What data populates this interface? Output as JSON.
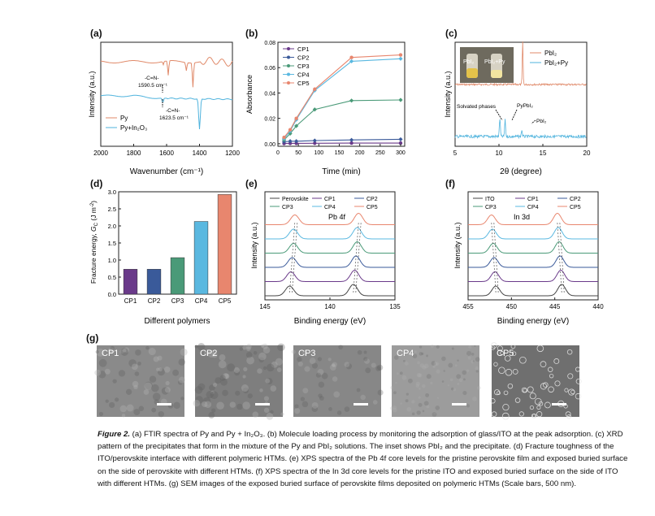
{
  "caption": {
    "figure_label": "Figure 2.",
    "text": "(a) FTIR spectra of Py and Py + In₂O₃. (b) Molecule loading process by monitoring the adsorption of glass/ITO at the peak adsorption. (c) XRD pattern of the precipitates that form in the mixture of the Py and PbI₂ solutions. The inset shows PbI₂ and the precipitate. (d) Fracture toughness of the ITO/perovskite interface with different polymeric HTMs. (e) XPS spectra of the Pb 4f core levels for the pristine perovskite film and exposed buried surface on the side of perovskite with different HTMs. (f) XPS spectra of the In 3d core levels for the pristine ITO and exposed buried surface on the side of ITO with different HTMs. (g) SEM images of the exposed buried surface of perovskite films deposited on polymeric HTMs (Scale bars, 500 nm)."
  },
  "colors": {
    "py": "#e08a6a",
    "py_in2o3": "#4fb3dd",
    "cp1": "#6a3a8a",
    "cp2": "#3a5a9a",
    "cp3": "#4a9a78",
    "cp4": "#5ab8e0",
    "cp5": "#e8866e",
    "perovskite": "#444444",
    "ito": "#444444"
  },
  "panels": {
    "a": {
      "label": "(a)",
      "ylabel": "Intensity (a.u.)",
      "xlabel": "Wavenumber (cm⁻¹)",
      "legend": [
        "Py",
        "Py+In₂O₃"
      ],
      "annot1": [
        "-C=N-",
        "1590.5 cm⁻¹"
      ],
      "annot2": [
        "-C=N-",
        "1623.5 cm⁻¹"
      ]
    },
    "b": {
      "label": "(b)",
      "legend": [
        "CP1",
        "CP2",
        "CP3",
        "CP4",
        "CP5"
      ]
    },
    "c": {
      "label": "(c)",
      "xlabel": "2θ (degree)",
      "ylabel": "Intensity (a.u.)",
      "legend": [
        "PbI₂",
        "PbI₂+Py"
      ],
      "inset_labels": [
        "PbI₂",
        "PbI₂+Py"
      ],
      "annots": [
        "Solvated phases",
        "PyPbI₂",
        "PbI₂"
      ]
    },
    "d": {
      "label": "(d)"
    },
    "e": {
      "label": "(e)",
      "ylabel": "Intensity (a.u.)",
      "xlabel": "Binding energy (eV)",
      "legend": [
        "Perovskite",
        "CP1",
        "CP2",
        "CP3",
        "CP4",
        "CP5"
      ],
      "core": "Pb 4f"
    },
    "f": {
      "label": "(f)",
      "ylabel": "Intensity (a.u.)",
      "xlabel": "Binding energy (eV)",
      "legend": [
        "ITO",
        "CP1",
        "CP2",
        "CP3",
        "CP4",
        "CP5"
      ],
      "core": "In 3d"
    },
    "g": {
      "label": "(g)",
      "images": [
        "CP1",
        "CP2",
        "CP3",
        "CP4",
        "CP5"
      ]
    }
  },
  "chart_data": [
    {
      "type": "line",
      "panel": "a",
      "title": "",
      "xlabel": "Wavenumber (cm⁻¹)",
      "ylabel": "Intensity (a.u.)",
      "xlim": [
        2000,
        1200
      ],
      "xticks": [
        2000,
        1800,
        1600,
        1400,
        1200
      ],
      "series": [
        {
          "name": "Py",
          "peaks": [
            1590.5,
            1480,
            1440
          ]
        },
        {
          "name": "Py+In₂O₃",
          "peaks": [
            1623.5,
            1400
          ]
        }
      ]
    },
    {
      "type": "line",
      "panel": "b",
      "title": "",
      "xlabel": "Time (min)",
      "ylabel": "Absorbance",
      "xlim": [
        0,
        310
      ],
      "ylim": [
        -0.002,
        0.08
      ],
      "xticks": [
        0,
        50,
        100,
        150,
        200,
        250,
        300
      ],
      "yticks": [
        "0.00",
        "0.02",
        "0.04",
        "0.06",
        "0.08"
      ],
      "x": [
        15,
        30,
        45,
        90,
        180,
        300
      ],
      "series": [
        {
          "name": "CP1",
          "values": [
            0.0002,
            0.0003,
            0.0003,
            0.0004,
            0.0005,
            0.0005
          ]
        },
        {
          "name": "CP2",
          "values": [
            0.0015,
            0.002,
            0.002,
            0.0025,
            0.003,
            0.0035
          ]
        },
        {
          "name": "CP3",
          "values": [
            0.003,
            0.008,
            0.014,
            0.027,
            0.034,
            0.0345
          ]
        },
        {
          "name": "CP4",
          "values": [
            0.004,
            0.01,
            0.019,
            0.042,
            0.065,
            0.067
          ]
        },
        {
          "name": "CP5",
          "values": [
            0.005,
            0.011,
            0.02,
            0.043,
            0.068,
            0.07
          ]
        }
      ]
    },
    {
      "type": "line",
      "panel": "c",
      "title": "",
      "xlabel": "2θ (degree)",
      "ylabel": "Intensity (a.u.)",
      "xlim": [
        5,
        20
      ],
      "xticks": [
        5,
        10,
        15,
        20
      ],
      "series": [
        {
          "name": "PbI₂",
          "peaks": [
            12.7
          ]
        },
        {
          "name": "PbI₂+Py",
          "peaks": [
            10.1,
            10.7,
            12.6
          ]
        }
      ]
    },
    {
      "type": "bar",
      "panel": "d",
      "title": "",
      "xlabel": "Different polymers",
      "ylabel": "Fracture energy, G_C (J m⁻²)",
      "ylabel_parts": [
        "Fracture energy, ",
        "G",
        "C",
        " (J m",
        "-2",
        ")"
      ],
      "categories": [
        "CP1",
        "CP2",
        "CP3",
        "CP4",
        "CP5"
      ],
      "values": [
        0.73,
        0.73,
        1.07,
        2.13,
        2.92
      ],
      "ylim": [
        0,
        3.0
      ],
      "yticks": [
        "0.0",
        "0.5",
        "1.0",
        "1.5",
        "2.0",
        "2.5",
        "3.0"
      ]
    },
    {
      "type": "line",
      "panel": "e",
      "title": "Pb 4f",
      "xlabel": "Binding energy (eV)",
      "ylabel": "Intensity (a.u.)",
      "xlim": [
        145,
        135
      ],
      "xticks": [
        145,
        140,
        135
      ],
      "series": [
        {
          "name": "Perovskite",
          "peaks": [
            143.1,
            138.2
          ]
        },
        {
          "name": "CP1",
          "peaks": [
            143.0,
            138.1
          ]
        },
        {
          "name": "CP2",
          "peaks": [
            142.9,
            138.0
          ]
        },
        {
          "name": "CP3",
          "peaks": [
            142.8,
            137.9
          ]
        },
        {
          "name": "CP4",
          "peaks": [
            142.8,
            137.9
          ]
        },
        {
          "name": "CP5",
          "peaks": [
            142.7,
            137.8
          ]
        }
      ]
    },
    {
      "type": "line",
      "panel": "f",
      "title": "In 3d",
      "xlabel": "Binding energy (eV)",
      "ylabel": "Intensity (a.u.)",
      "xlim": [
        455,
        440
      ],
      "xticks": [
        455,
        450,
        445,
        440
      ],
      "series": [
        {
          "name": "ITO",
          "peaks": [
            451.8,
            444.2
          ]
        },
        {
          "name": "CP1",
          "peaks": [
            451.9,
            444.3
          ]
        },
        {
          "name": "CP2",
          "peaks": [
            452.0,
            444.4
          ]
        },
        {
          "name": "CP3",
          "peaks": [
            452.1,
            444.5
          ]
        },
        {
          "name": "CP4",
          "peaks": [
            452.2,
            444.6
          ]
        },
        {
          "name": "CP5",
          "peaks": [
            452.3,
            444.7
          ]
        }
      ]
    }
  ]
}
